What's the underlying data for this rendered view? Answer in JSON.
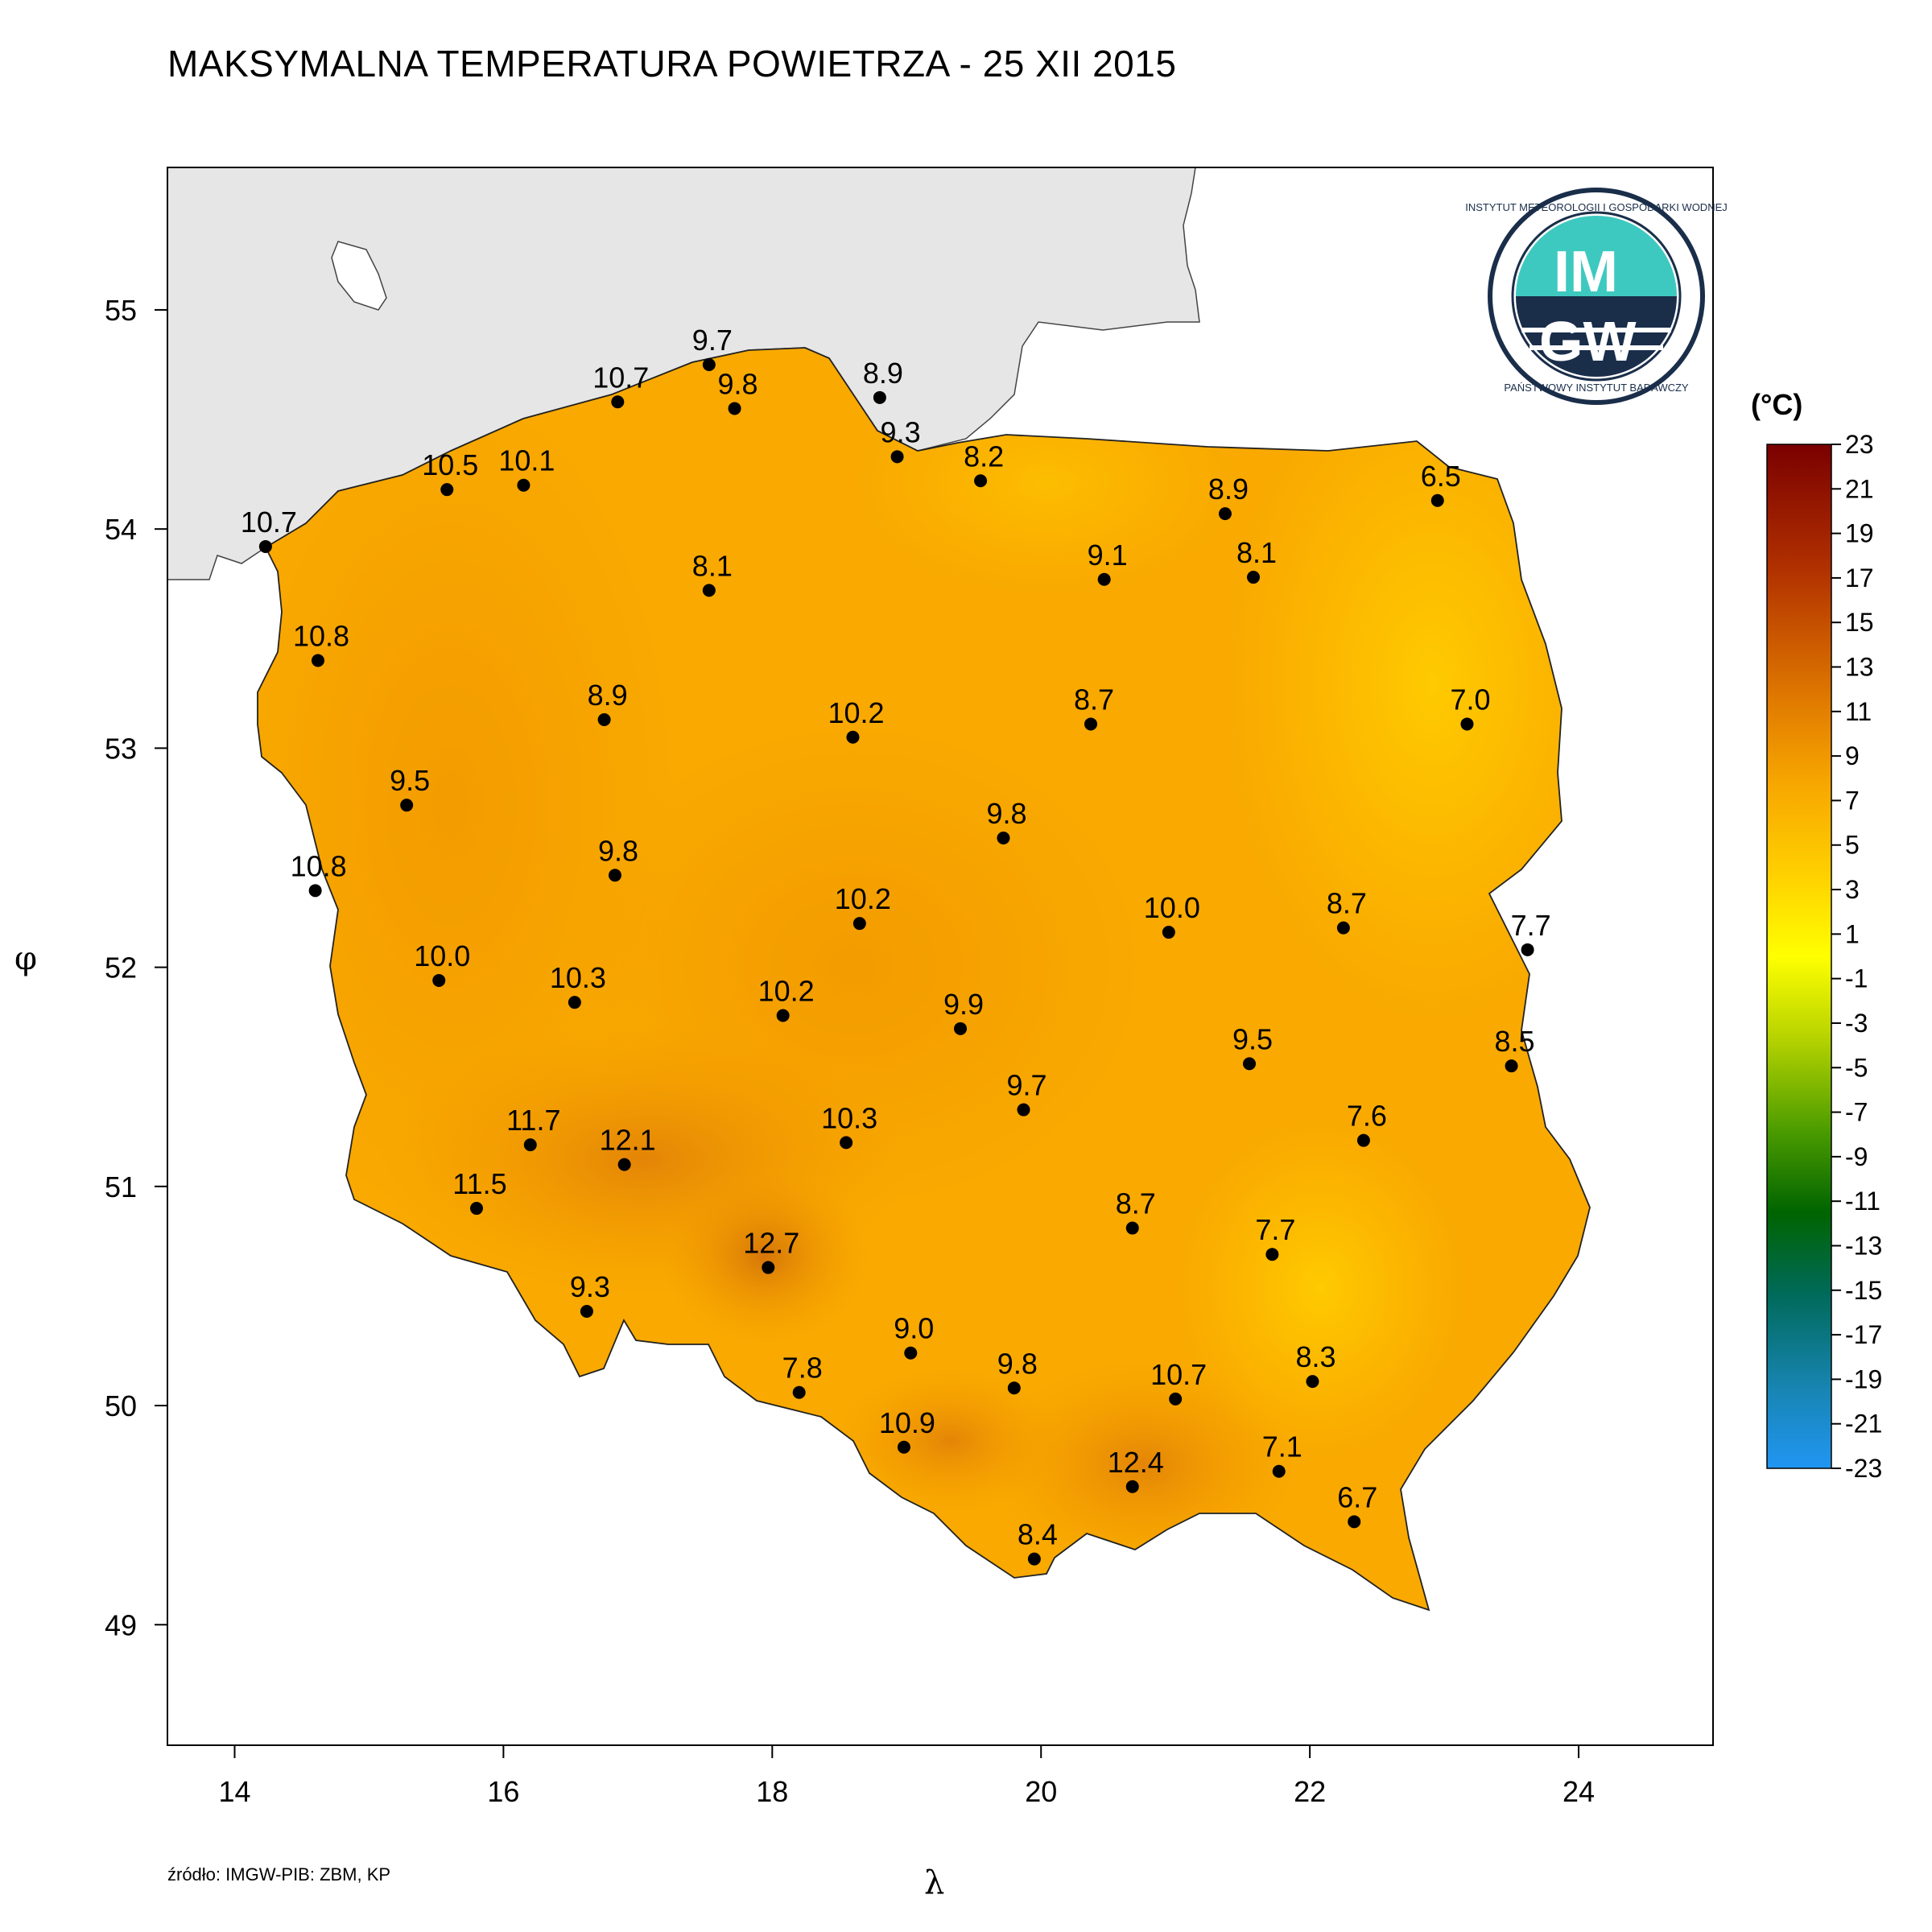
{
  "title": "MAKSYMALNA TEMPERATURA POWIETRZA - 25 XII 2015",
  "source": "źródło: IMGW-PIB: ZBM, KP",
  "axes": {
    "xlabel": "λ",
    "ylabel": "φ",
    "x_ticks": [
      "14",
      "16",
      "18",
      "20",
      "22",
      "24"
    ],
    "y_ticks": [
      "55",
      "54",
      "53",
      "52",
      "51",
      "50",
      "49"
    ]
  },
  "legend": {
    "unit": "(°C)",
    "labels": [
      "23",
      "21",
      "19",
      "17",
      "15",
      "13",
      "11",
      "9",
      "7",
      "5",
      "3",
      "1",
      "-1",
      "-3",
      "-5",
      "-7",
      "-9",
      "-11",
      "-13",
      "-15",
      "-17",
      "-19",
      "-21",
      "-23"
    ]
  },
  "logo": {
    "top_text": "INSTYTUT METEOROLOGII I GOSPODARKI WODNEJ",
    "bottom_text": "PAŃSTWOWY INSTYTUT BADAWCZY",
    "line1": "IM",
    "line2": "GW"
  },
  "colors": {
    "sea": "#e6e6e6",
    "land": "#f9a900",
    "warm": "#e8860a",
    "cool": "#ffc600"
  },
  "chart_data": {
    "type": "scatter",
    "xlim": [
      13.5,
      25.0
    ],
    "ylim": [
      48.45,
      55.65
    ],
    "stations": [
      {
        "lon": 14.23,
        "lat": 53.92,
        "value": "10.7"
      },
      {
        "lon": 15.58,
        "lat": 54.18,
        "value": "10.5"
      },
      {
        "lon": 16.15,
        "lat": 54.2,
        "value": "10.1"
      },
      {
        "lon": 16.85,
        "lat": 54.58,
        "value": "10.7"
      },
      {
        "lon": 17.53,
        "lat": 54.75,
        "value": "9.7"
      },
      {
        "lon": 17.72,
        "lat": 54.55,
        "value": "9.8"
      },
      {
        "lon": 18.8,
        "lat": 54.6,
        "value": "8.9"
      },
      {
        "lon": 18.93,
        "lat": 54.33,
        "value": "9.3"
      },
      {
        "lon": 19.55,
        "lat": 54.22,
        "value": "8.2"
      },
      {
        "lon": 21.37,
        "lat": 54.07,
        "value": "8.9"
      },
      {
        "lon": 22.95,
        "lat": 54.13,
        "value": "6.5"
      },
      {
        "lon": 17.53,
        "lat": 53.72,
        "value": "8.1"
      },
      {
        "lon": 20.47,
        "lat": 53.77,
        "value": "9.1"
      },
      {
        "lon": 21.58,
        "lat": 53.78,
        "value": "8.1"
      },
      {
        "lon": 14.62,
        "lat": 53.4,
        "value": "10.8"
      },
      {
        "lon": 16.75,
        "lat": 53.13,
        "value": "8.9"
      },
      {
        "lon": 18.6,
        "lat": 53.05,
        "value": "10.2"
      },
      {
        "lon": 20.37,
        "lat": 53.11,
        "value": "8.7"
      },
      {
        "lon": 23.17,
        "lat": 53.11,
        "value": "7.0"
      },
      {
        "lon": 15.28,
        "lat": 52.74,
        "value": "9.5"
      },
      {
        "lon": 19.72,
        "lat": 52.59,
        "value": "9.8"
      },
      {
        "lon": 14.6,
        "lat": 52.35,
        "value": "10.8"
      },
      {
        "lon": 16.83,
        "lat": 52.42,
        "value": "9.8"
      },
      {
        "lon": 18.65,
        "lat": 52.2,
        "value": "10.2"
      },
      {
        "lon": 20.95,
        "lat": 52.16,
        "value": "10.0"
      },
      {
        "lon": 22.25,
        "lat": 52.18,
        "value": "8.7"
      },
      {
        "lon": 23.62,
        "lat": 52.08,
        "value": "7.7"
      },
      {
        "lon": 15.52,
        "lat": 51.94,
        "value": "10.0"
      },
      {
        "lon": 16.53,
        "lat": 51.84,
        "value": "10.3"
      },
      {
        "lon": 18.08,
        "lat": 51.78,
        "value": "10.2"
      },
      {
        "lon": 19.4,
        "lat": 51.72,
        "value": "9.9"
      },
      {
        "lon": 21.55,
        "lat": 51.56,
        "value": "9.5"
      },
      {
        "lon": 23.5,
        "lat": 51.55,
        "value": "8.5"
      },
      {
        "lon": 19.87,
        "lat": 51.35,
        "value": "9.7"
      },
      {
        "lon": 16.2,
        "lat": 51.19,
        "value": "11.7"
      },
      {
        "lon": 16.9,
        "lat": 51.1,
        "value": "12.1"
      },
      {
        "lon": 18.55,
        "lat": 51.2,
        "value": "10.3"
      },
      {
        "lon": 22.4,
        "lat": 51.21,
        "value": "7.6"
      },
      {
        "lon": 15.8,
        "lat": 50.9,
        "value": "11.5"
      },
      {
        "lon": 20.68,
        "lat": 50.81,
        "value": "8.7"
      },
      {
        "lon": 21.72,
        "lat": 50.69,
        "value": "7.7"
      },
      {
        "lon": 17.97,
        "lat": 50.63,
        "value": "12.7"
      },
      {
        "lon": 16.62,
        "lat": 50.43,
        "value": "9.3"
      },
      {
        "lon": 19.03,
        "lat": 50.24,
        "value": "9.0"
      },
      {
        "lon": 18.2,
        "lat": 50.06,
        "value": "7.8"
      },
      {
        "lon": 19.8,
        "lat": 50.08,
        "value": "9.8"
      },
      {
        "lon": 21.0,
        "lat": 50.03,
        "value": "10.7"
      },
      {
        "lon": 22.02,
        "lat": 50.11,
        "value": "8.3"
      },
      {
        "lon": 18.98,
        "lat": 49.81,
        "value": "10.9"
      },
      {
        "lon": 21.77,
        "lat": 49.7,
        "value": "7.1"
      },
      {
        "lon": 20.68,
        "lat": 49.63,
        "value": "12.4"
      },
      {
        "lon": 22.33,
        "lat": 49.47,
        "value": "6.7"
      },
      {
        "lon": 19.95,
        "lat": 49.3,
        "value": "8.4"
      }
    ]
  }
}
